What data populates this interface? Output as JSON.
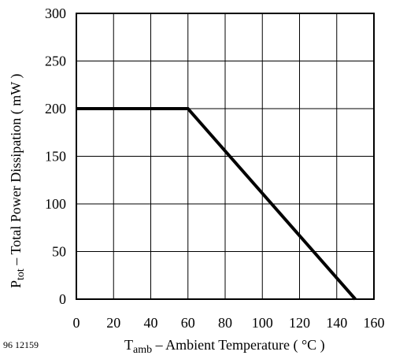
{
  "chart_data": {
    "type": "line",
    "series": [
      {
        "x": [
          0,
          60,
          150
        ],
        "y": [
          200,
          200,
          0
        ]
      }
    ],
    "x_ticks": [
      "0",
      "20",
      "40",
      "60",
      "80",
      "100",
      "120",
      "140",
      "160"
    ],
    "y_ticks": [
      "0",
      "50",
      "100",
      "150",
      "200",
      "250",
      "300"
    ],
    "xlim": [
      0,
      160
    ],
    "ylim": [
      0,
      300
    ],
    "grid": true,
    "xlabel": {
      "symbol": "T",
      "subscript": "amb",
      "text": " – Ambient Temperature ( °C )"
    },
    "ylabel": {
      "symbol": "P",
      "subscript": "tot",
      "text": " – Total Power Dissipation ( mW )"
    },
    "figure_id": "96 12159",
    "colors": {
      "line": "#000000",
      "grid": "#000000",
      "frame": "#000000"
    }
  }
}
